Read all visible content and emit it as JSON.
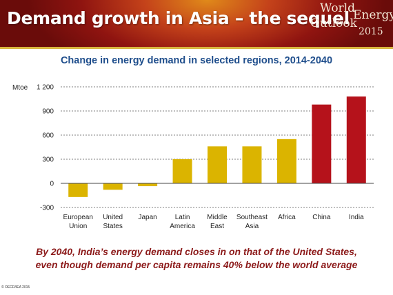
{
  "banner": {
    "title": "Demand growth in Asia – the sequel",
    "logo_line1": "World",
    "logo_line2": "Energy",
    "logo_line3": "Outlook",
    "logo_line4": "2015"
  },
  "caption": {
    "line1": "By 2040, India’s energy demand closes in on that of the United States,",
    "line2": "even though demand per capita remains 40% below the world average"
  },
  "copyright": "© OECD/IEA 2015",
  "colors": {
    "banner_dark": "#8f1410",
    "title_blue": "#1f4e8c",
    "bar_gold": "#dbb400",
    "bar_red": "#b5121b",
    "caption_red": "#8c1a1a"
  },
  "chart_data": {
    "type": "bar",
    "title": "Change in energy demand in selected regions, 2014-2040",
    "ylabel": "Mtoe",
    "ylim": [
      -300,
      1200
    ],
    "yticks": [
      -300,
      0,
      300,
      600,
      900,
      1200
    ],
    "ytick_labels": [
      "-300",
      "0",
      "300",
      "600",
      "900",
      "1 200"
    ],
    "grid": true,
    "categories": [
      [
        "European",
        "Union"
      ],
      [
        "United",
        "States"
      ],
      [
        "Japan"
      ],
      [
        "Latin",
        "America"
      ],
      [
        "Middle",
        "East"
      ],
      [
        "Southeast",
        "Asia"
      ],
      [
        "Africa"
      ],
      [
        "China"
      ],
      [
        "India"
      ]
    ],
    "values": [
      -170,
      -80,
      -35,
      300,
      460,
      460,
      550,
      980,
      1080
    ],
    "bar_colors": [
      "#dbb400",
      "#dbb400",
      "#dbb400",
      "#dbb400",
      "#dbb400",
      "#dbb400",
      "#dbb400",
      "#b5121b",
      "#b5121b"
    ]
  }
}
